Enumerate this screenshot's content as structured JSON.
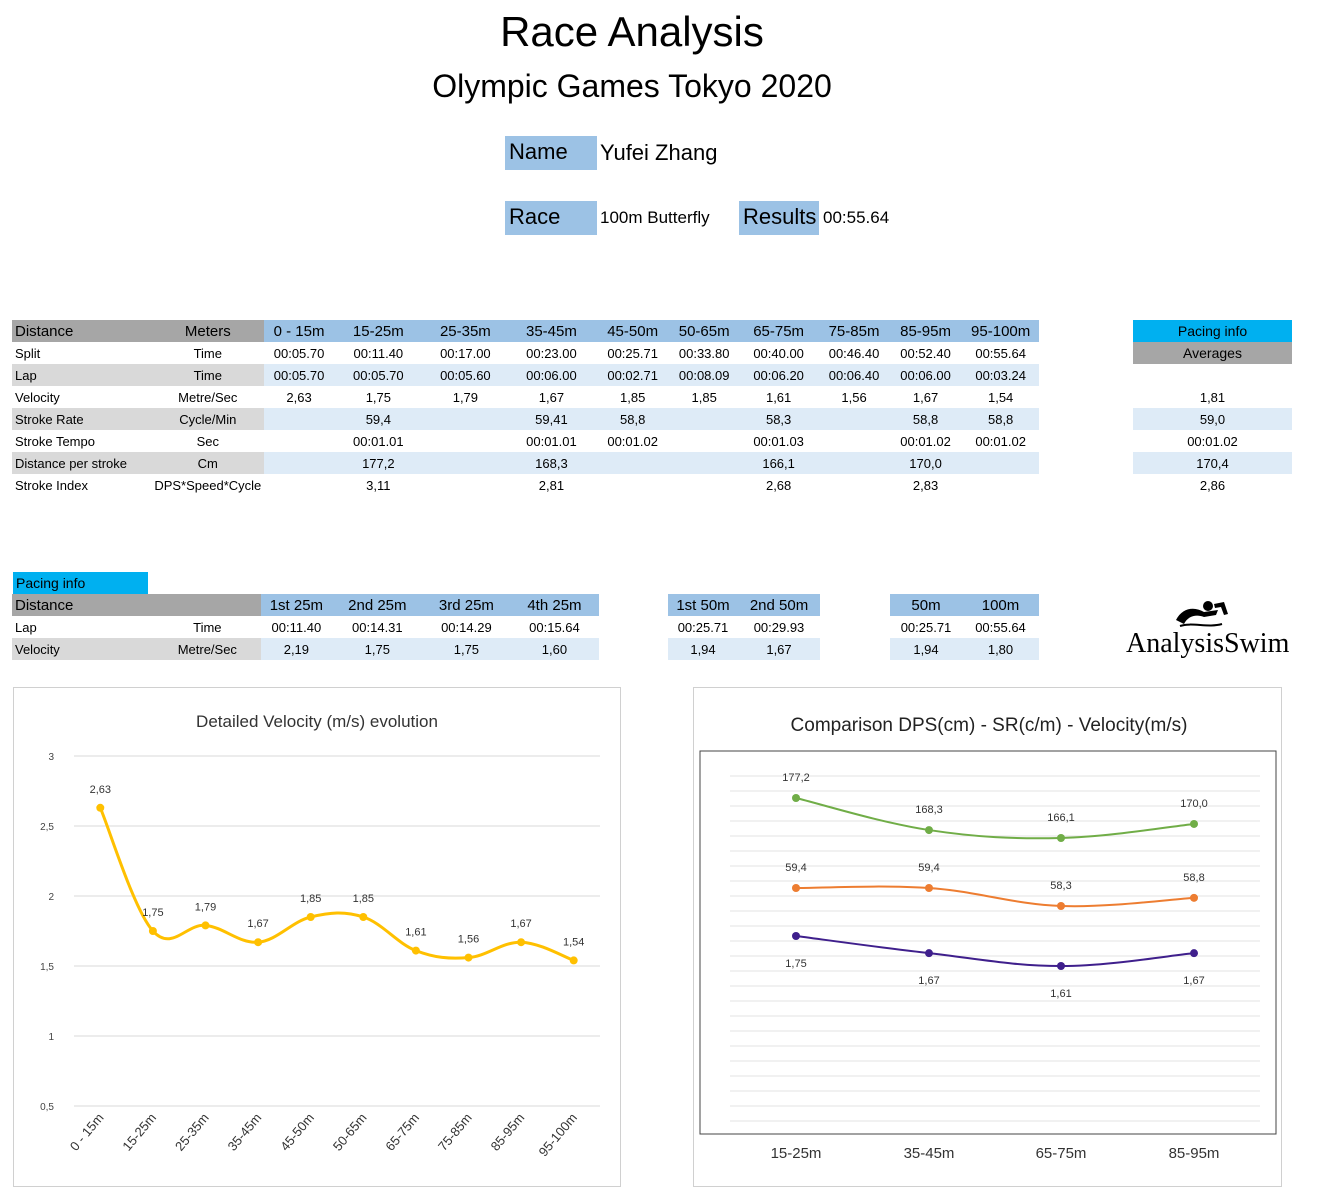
{
  "header": {
    "title": "Race Analysis",
    "subtitle": "Olympic Games Tokyo 2020",
    "name_label": "Name",
    "name_value": "Yufei Zhang",
    "race_label": "Race",
    "race_value": "100m Butterfly",
    "results_label": "Results",
    "results_value": "00:55.64"
  },
  "main_table": {
    "col1": "Distance",
    "col2": "Meters",
    "segments": [
      "0 - 15m",
      "15-25m",
      "25-35m",
      "35-45m",
      "45-50m",
      "50-65m",
      "65-75m",
      "75-85m",
      "85-95m",
      "95-100m"
    ],
    "rows": [
      {
        "label": "Split",
        "unit": "Time",
        "values": [
          "00:05.70",
          "00:11.40",
          "00:17.00",
          "00:23.00",
          "00:25.71",
          "00:33.80",
          "00:40.00",
          "00:46.40",
          "00:52.40",
          "00:55.64"
        ]
      },
      {
        "label": "Lap",
        "unit": "Time",
        "values": [
          "00:05.70",
          "00:05.70",
          "00:05.60",
          "00:06.00",
          "00:02.71",
          "00:08.09",
          "00:06.20",
          "00:06.40",
          "00:06.00",
          "00:03.24"
        ]
      },
      {
        "label": "Velocity",
        "unit": "Metre/Sec",
        "values": [
          "2,63",
          "1,75",
          "1,79",
          "1,67",
          "1,85",
          "1,85",
          "1,61",
          "1,56",
          "1,67",
          "1,54"
        ]
      },
      {
        "label": "Stroke Rate",
        "unit": "Cycle/Min",
        "values": [
          "",
          "59,4",
          "",
          "59,41",
          "58,8",
          "",
          "58,3",
          "",
          "58,8",
          "58,8"
        ]
      },
      {
        "label": "Stroke Tempo",
        "unit": "Sec",
        "values": [
          "",
          "00:01.01",
          "",
          "00:01.01",
          "00:01.02",
          "",
          "00:01.03",
          "",
          "00:01.02",
          "00:01.02"
        ]
      },
      {
        "label": "Distance per stroke",
        "unit": "Cm",
        "values": [
          "",
          "177,2",
          "",
          "168,3",
          "",
          "",
          "166,1",
          "",
          "170,0",
          ""
        ]
      },
      {
        "label": "Stroke Index",
        "unit": "DPS*Speed*Cycle",
        "values": [
          "",
          "3,11",
          "",
          "2,81",
          "",
          "",
          "2,68",
          "",
          "2,83",
          ""
        ]
      }
    ]
  },
  "averages": {
    "title": "Pacing info",
    "subtitle": "Averages",
    "values": [
      "1,81",
      "59,0",
      "00:01.02",
      "170,4",
      "2,86"
    ]
  },
  "pacing": {
    "title": "Pacing info",
    "col1": "Distance",
    "quarters": [
      "1st 25m",
      "2nd 25m",
      "3rd 25m",
      "4th 25m"
    ],
    "lap_label": "Lap",
    "lap_unit": "Time",
    "vel_label": "Velocity",
    "vel_unit": "Metre/Sec",
    "quarter_lap": [
      "00:11.40",
      "00:14.31",
      "00:14.29",
      "00:15.64"
    ],
    "quarter_vel": [
      "2,19",
      "1,75",
      "1,75",
      "1,60"
    ],
    "halves": [
      "1st 50m",
      "2nd 50m"
    ],
    "half_lap": [
      "00:25.71",
      "00:29.93"
    ],
    "half_vel": [
      "1,94",
      "1,67"
    ],
    "cumul": [
      "50m",
      "100m"
    ],
    "cumul_lap": [
      "00:25.71",
      "00:55.64"
    ],
    "cumul_vel": [
      "1,94",
      "1,80"
    ]
  },
  "logo": {
    "text": "AnalysisSwim",
    "icon": "swimmer-icon"
  },
  "chart_data": [
    {
      "type": "line",
      "title": "Detailed Velocity (m/s)  evolution",
      "categories": [
        "0 - 15m",
        "15-25m",
        "25-35m",
        "35-45m",
        "45-50m",
        "50-65m",
        "65-75m",
        "75-85m",
        "85-95m",
        "95-100m"
      ],
      "values": [
        2.63,
        1.75,
        1.79,
        1.67,
        1.85,
        1.85,
        1.61,
        1.56,
        1.67,
        1.54
      ],
      "value_labels": [
        "2,63",
        "1,75",
        "1,79",
        "1,67",
        "1,85",
        "1,85",
        "1,61",
        "1,56",
        "1,67",
        "1,54"
      ],
      "yticks": [
        "0,5",
        "1",
        "1,5",
        "2",
        "2,5",
        "3"
      ],
      "ylim": [
        0.5,
        3
      ],
      "color": "#ffc000",
      "grid": true,
      "smooth": true
    },
    {
      "type": "line",
      "title": "Comparison DPS(cm) - SR(c/m) - Velocity(m/s)",
      "categories": [
        "15-25m",
        "35-45m",
        "65-75m",
        "85-95m"
      ],
      "series": [
        {
          "values": [
            177.2,
            168.3,
            166.1,
            170.0
          ],
          "labels": [
            "177,2",
            "168,3",
            "166,1",
            "170,0"
          ],
          "color": "#70ad47"
        },
        {
          "values": [
            59.4,
            59.4,
            58.3,
            58.8
          ],
          "labels": [
            "59,4",
            "59,4",
            "58,3",
            "58,8"
          ],
          "color": "#ed7d31"
        },
        {
          "values": [
            1.75,
            1.67,
            1.61,
            1.67
          ],
          "labels": [
            "1,75",
            "1,67",
            "1,61",
            "1,67"
          ],
          "color": "#3f1f8c"
        }
      ],
      "grid": true
    }
  ]
}
